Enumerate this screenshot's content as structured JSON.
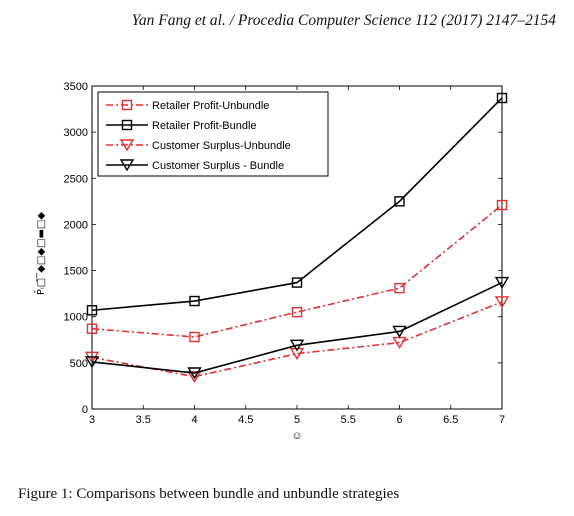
{
  "paper": {
    "running_header": "Yan Fang et al. / Procedia Computer Science 112 (2017) 2147–2154",
    "figure_caption": "Figure 1: Comparisons between bundle and unbundle strategies"
  },
  "chart_data": {
    "type": "line",
    "title": "",
    "xlabel": "☺",
    "ylabel": "P̄ᵢ□̄‾◆□◆□▬□◆",
    "xlim": [
      3,
      7
    ],
    "ylim": [
      0,
      3500
    ],
    "x_ticks": [
      3,
      3.5,
      4,
      4.5,
      5,
      5.5,
      6,
      6.5,
      7
    ],
    "y_ticks": [
      0,
      500,
      1000,
      1500,
      2000,
      2500,
      3000,
      3500
    ],
    "x": [
      3,
      4,
      5,
      6,
      7
    ],
    "legend_position": "top-left",
    "grid": false,
    "series": [
      {
        "name": "Retailer Profit-Unbundle",
        "values": [
          870,
          780,
          1050,
          1310,
          2210
        ],
        "color": "#e03030",
        "dash": "dashdot",
        "marker": "square"
      },
      {
        "name": "Retailer Profit-Bundle",
        "values": [
          1070,
          1170,
          1370,
          2250,
          3370
        ],
        "color": "#000000",
        "dash": "solid",
        "marker": "square"
      },
      {
        "name": "Customer Surplus-Unbundle",
        "values": [
          560,
          350,
          600,
          720,
          1160
        ],
        "color": "#e03030",
        "dash": "dashdot",
        "marker": "triangle-down"
      },
      {
        "name": "Customer Surplus - Bundle",
        "values": [
          510,
          390,
          690,
          840,
          1370
        ],
        "color": "#000000",
        "dash": "solid",
        "marker": "triangle-down"
      }
    ]
  }
}
